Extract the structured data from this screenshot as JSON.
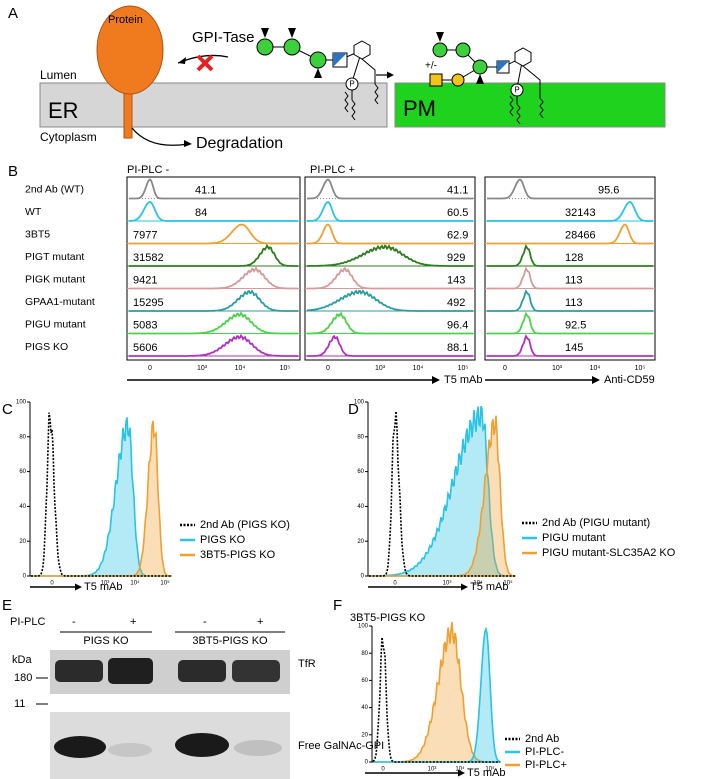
{
  "panel_labels": {
    "a": "A",
    "b": "B",
    "c": "C",
    "d": "D",
    "e": "E",
    "f": "F"
  },
  "panel_a": {
    "protein": "Protein",
    "enzyme": "GPI-Tase",
    "lumen": "Lumen",
    "er": "ER",
    "cytoplasm": "Cytoplasm",
    "degradation": "Degradation",
    "pm": "PM",
    "phosphate": "P",
    "plus_minus": "+/-"
  },
  "panel_b": {
    "column_titles": [
      "PI-PLC -",
      "PI-PLC +"
    ],
    "rows": [
      {
        "label": "2nd Ab (WT)",
        "values": [
          41.1,
          41.1,
          95.6
        ]
      },
      {
        "label": "WT",
        "values": [
          84,
          60.5,
          32143
        ]
      },
      {
        "label": "3BT5",
        "values": [
          7977,
          62.9,
          28466
        ]
      },
      {
        "label": "PIGT mutant",
        "values": [
          31582,
          929,
          128
        ]
      },
      {
        "label": "PIGK mutant",
        "values": [
          9421,
          143,
          113
        ]
      },
      {
        "label": "GPAA1-mutant",
        "values": [
          15295,
          492,
          113
        ]
      },
      {
        "label": "PIGU mutant",
        "values": [
          5083,
          96.4,
          92.5
        ]
      },
      {
        "label": "PIGS KO",
        "values": [
          5606,
          88.1,
          145
        ]
      }
    ],
    "x_ticks": [
      "0",
      "10³",
      "10⁴",
      "10⁵"
    ],
    "x_label": "T5 mAb",
    "x_label_cd59": "Anti-CD59"
  },
  "panel_c": {
    "y_ticks": [
      "0",
      "20",
      "40",
      "60",
      "80",
      "100"
    ],
    "x_ticks": [
      "0",
      "10³",
      "10⁴",
      "10⁵"
    ],
    "x_label": "T5 mAb",
    "legend": [
      "2nd Ab (PIGS KO)",
      "PIGS KO",
      "3BT5-PIGS KO"
    ]
  },
  "panel_d": {
    "y_ticks": [
      "0",
      "20",
      "40",
      "60",
      "80",
      "100"
    ],
    "x_ticks": [
      "0",
      "10³",
      "10⁴",
      "10⁵"
    ],
    "x_label": "T5 mAb",
    "legend": [
      "2nd Ab (PIGU mutant)",
      "PIGU mutant",
      "PIGU mutant-SLC35A2 KO"
    ]
  },
  "panel_e": {
    "treatment": "PI-PLC",
    "lanes": [
      "-",
      "+",
      "-",
      "+"
    ],
    "groups": [
      "PIGS KO",
      "3BT5-PIGS KO"
    ],
    "unit": "kDa",
    "markers": [
      "180",
      "11"
    ],
    "bands": [
      "TfR",
      "Free GalNAc-GPI"
    ]
  },
  "panel_f": {
    "title": "3BT5-PIGS KO",
    "y_ticks": [
      "0",
      "20",
      "40",
      "60",
      "80",
      "100"
    ],
    "x_ticks": [
      "0",
      "10³",
      "10⁴",
      "10⁵"
    ],
    "x_label": "T5 mAb",
    "legend": [
      "2nd Ab",
      "PI-PLC-",
      "PI-PLC+"
    ]
  }
}
